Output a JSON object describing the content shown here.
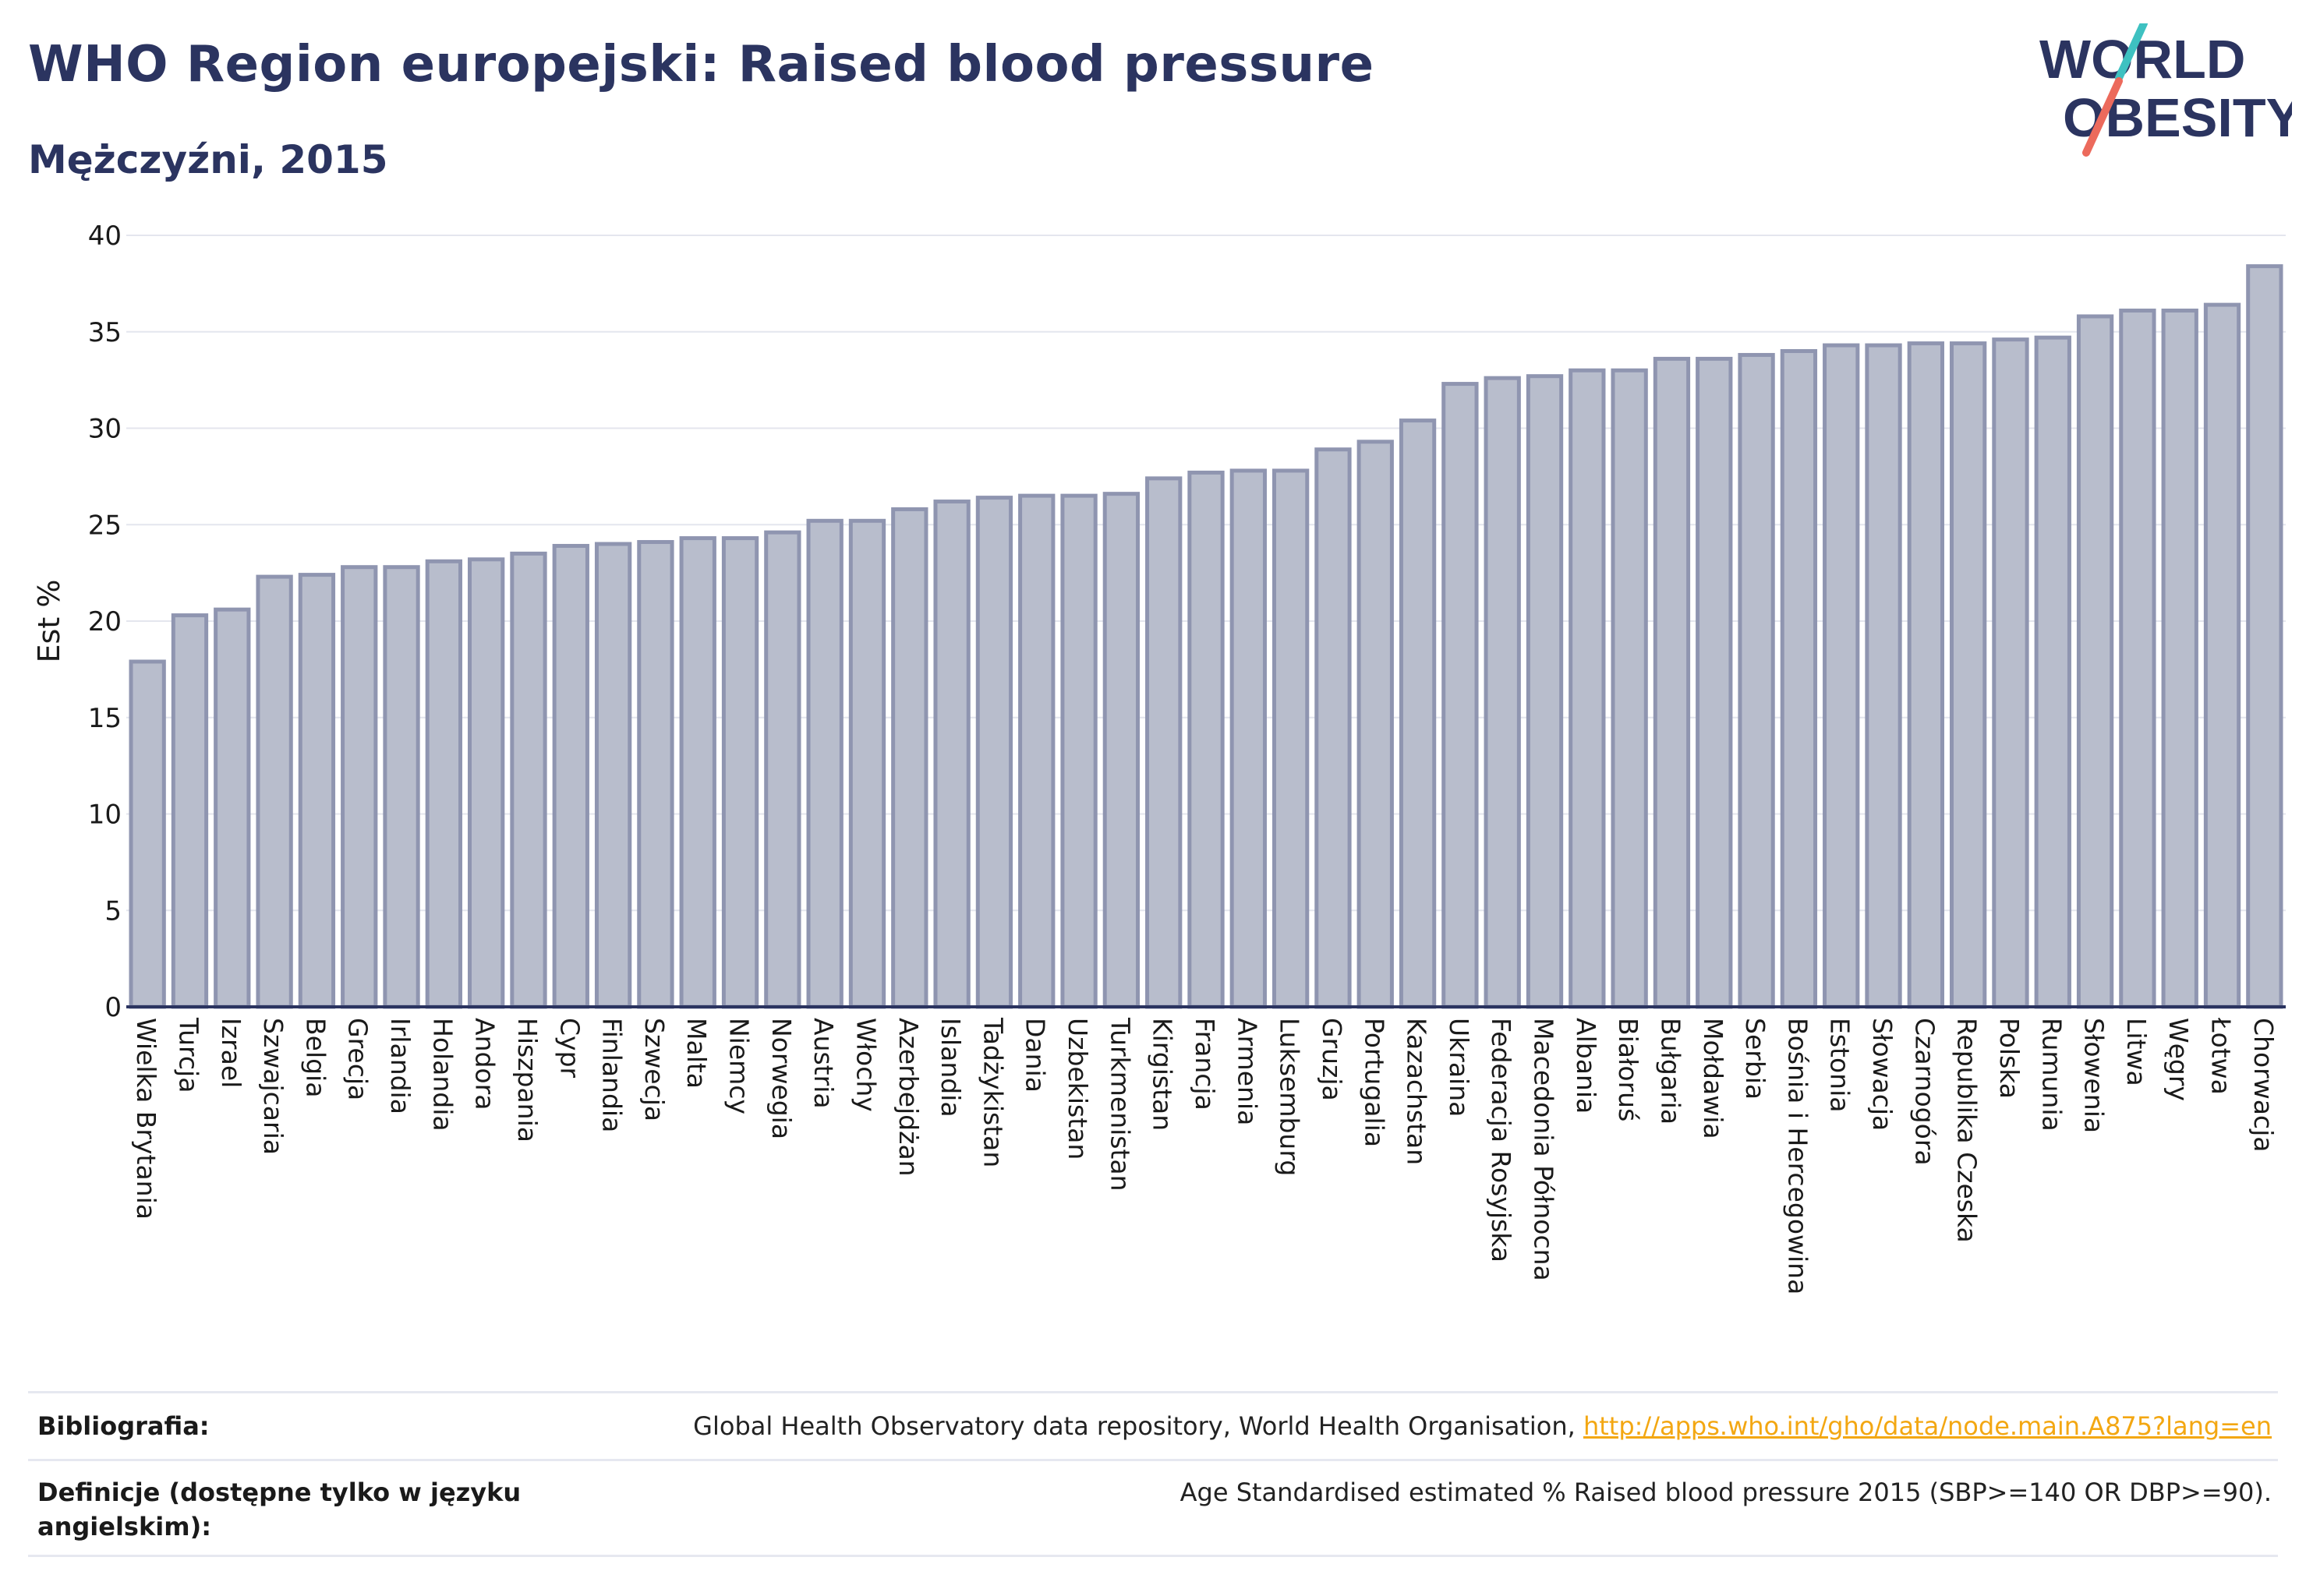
{
  "title": "WHO Region europejski: Raised blood pressure",
  "subtitle": "Mężczyźni, 2015",
  "logo": {
    "line1": "WORLD",
    "line2": "OBESITY",
    "colors": {
      "text": "#2b3460",
      "slash_top": "#3ec1c1",
      "slash_bottom": "#ec6a5c"
    }
  },
  "footer": {
    "bibliography_label": "Bibliografia:",
    "bibliography_text": "Global Health Observatory data repository, World Health Organisation, ",
    "bibliography_link": "http://apps.who.int/gho/data/node.main.A875?lang=en",
    "definitions_label": "Definicje (dostępne tylko w języku angielskim):",
    "definitions_text": "Age Standardised estimated % Raised blood pressure 2015 (SBP>=140 OR DBP>=90)."
  },
  "chart_data": {
    "type": "bar",
    "title": "WHO Region europejski: Raised blood pressure",
    "xlabel": "",
    "ylabel": "Est %",
    "ylim": [
      0,
      40
    ],
    "yticks": [
      0,
      5,
      10,
      15,
      20,
      25,
      30,
      35,
      40
    ],
    "grid": true,
    "bar_fill": "#b8bdcc",
    "bar_stroke": "#8f95b0",
    "categories": [
      "Wielka Brytania",
      "Turcja",
      "Izrael",
      "Szwajcaria",
      "Belgia",
      "Grecja",
      "Irlandia",
      "Holandia",
      "Andora",
      "Hiszpania",
      "Cypr",
      "Finlandia",
      "Szwecja",
      "Malta",
      "Niemcy",
      "Norwegia",
      "Austria",
      "Włochy",
      "Azerbejdżan",
      "Islandia",
      "Tadżykistan",
      "Dania",
      "Uzbekistan",
      "Turkmenistan",
      "Kirgistan",
      "Francja",
      "Armenia",
      "Luksemburg",
      "Gruzja",
      "Portugalia",
      "Kazachstan",
      "Ukraina",
      "Federacja Rosyjska",
      "Macedonia Północna",
      "Albania",
      "Białoruś",
      "Bułgaria",
      "Mołdawia",
      "Serbia",
      "Bośnia i Hercegowina",
      "Estonia",
      "Słowacja",
      "Czarnogóra",
      "Republika Czeska",
      "Polska",
      "Rumunia",
      "Słowenia",
      "Litwa",
      "Węgry",
      "Łotwa",
      "Chorwacja"
    ],
    "values": [
      17.9,
      20.3,
      20.6,
      22.3,
      22.4,
      22.8,
      22.8,
      23.1,
      23.2,
      23.5,
      23.9,
      24.0,
      24.1,
      24.3,
      24.3,
      24.6,
      25.2,
      25.2,
      25.8,
      26.2,
      26.4,
      26.5,
      26.5,
      26.6,
      27.4,
      27.7,
      27.8,
      27.8,
      28.9,
      29.3,
      30.4,
      32.3,
      32.6,
      32.7,
      33.0,
      33.0,
      33.6,
      33.6,
      33.8,
      34.0,
      34.3,
      34.3,
      34.4,
      34.4,
      34.6,
      34.7,
      35.8,
      36.1,
      36.1,
      36.4,
      38.4
    ]
  }
}
